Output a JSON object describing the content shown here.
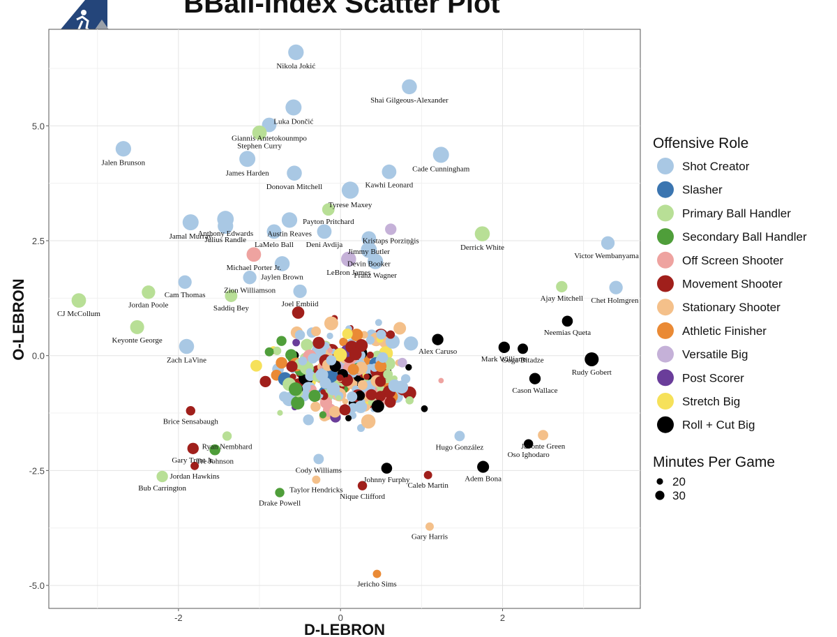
{
  "chart_data": {
    "type": "scatter",
    "title": "BBall-Index Scatter Plot",
    "xlabel": "D-LEBRON",
    "ylabel": "O-LEBRON",
    "xlim": [
      -3.6,
      3.7
    ],
    "ylim": [
      -5.5,
      7.1
    ],
    "xticks": [
      -2,
      0,
      2
    ],
    "yticks": [
      -5.0,
      -2.5,
      0.0,
      2.5,
      5.0
    ],
    "ytick_labels": [
      "-5.0",
      "-2.5",
      "0.0",
      "2.5",
      "5.0"
    ],
    "xtick_labels": [
      "-2",
      "0",
      "2"
    ],
    "grid": true,
    "legend_role_title": "Offensive Role",
    "legend_size_title": "Minutes Per Game",
    "legend_sizes": [
      {
        "label": "20",
        "minutes": 20
      },
      {
        "label": "30",
        "minutes": 30
      }
    ],
    "roles": [
      {
        "name": "Shot Creator",
        "color": "#a9c8e4"
      },
      {
        "name": "Slasher",
        "color": "#3b75b0"
      },
      {
        "name": "Primary Ball Handler",
        "color": "#b8df96"
      },
      {
        "name": "Secondary Ball Handler",
        "color": "#4f9e3a"
      },
      {
        "name": "Off Screen Shooter",
        "color": "#eea3a0"
      },
      {
        "name": "Movement Shooter",
        "color": "#a01f1b"
      },
      {
        "name": "Stationary Shooter",
        "color": "#f4c08a"
      },
      {
        "name": "Athletic Finisher",
        "color": "#ea8a35"
      },
      {
        "name": "Versatile Big",
        "color": "#c5b1d8"
      },
      {
        "name": "Post Scorer",
        "color": "#6a3d9a"
      },
      {
        "name": "Stretch Big",
        "color": "#f6e15a"
      },
      {
        "name": "Roll + Cut Big",
        "color": "#000000"
      }
    ],
    "labeled_points": [
      {
        "name": "Nikola Jokić",
        "x": -0.55,
        "y": 6.6,
        "role": 0,
        "min": 34
      },
      {
        "name": "Shai Gilgeous-Alexander",
        "x": 0.85,
        "y": 5.85,
        "role": 0,
        "min": 33
      },
      {
        "name": "Luka Dončić",
        "x": -0.58,
        "y": 5.4,
        "role": 0,
        "min": 35
      },
      {
        "name": "Giannis Antetokounmpo",
        "x": -0.88,
        "y": 5.02,
        "role": 0,
        "min": 32
      },
      {
        "name": "Stephen Curry",
        "x": -1.0,
        "y": 4.85,
        "role": 2,
        "min": 32
      },
      {
        "name": "Jalen Brunson",
        "x": -2.68,
        "y": 4.5,
        "role": 0,
        "min": 34
      },
      {
        "name": "James Harden",
        "x": -1.15,
        "y": 4.28,
        "role": 0,
        "min": 35
      },
      {
        "name": "Cade Cunningham",
        "x": 1.24,
        "y": 4.37,
        "role": 0,
        "min": 35
      },
      {
        "name": "Kawhi Leonard",
        "x": 0.6,
        "y": 4.0,
        "role": 0,
        "min": 32
      },
      {
        "name": "Donovan Mitchell",
        "x": -0.57,
        "y": 3.97,
        "role": 0,
        "min": 33
      },
      {
        "name": "Tyrese Maxey",
        "x": 0.12,
        "y": 3.6,
        "role": 0,
        "min": 37
      },
      {
        "name": "Anthony Edwards",
        "x": -1.42,
        "y": 2.97,
        "role": 0,
        "min": 36
      },
      {
        "name": "Payton Pritchard",
        "x": -0.15,
        "y": 3.18,
        "role": 2,
        "min": 28
      },
      {
        "name": "Jamal Murray",
        "x": -1.85,
        "y": 2.9,
        "role": 0,
        "min": 35
      },
      {
        "name": "Austin Reaves",
        "x": -0.63,
        "y": 2.95,
        "role": 0,
        "min": 34
      },
      {
        "name": "Deni Avdija",
        "x": -0.2,
        "y": 2.7,
        "role": 0,
        "min": 32
      },
      {
        "name": "Kristaps Porziņģis",
        "x": 0.62,
        "y": 2.75,
        "role": 8,
        "min": 26
      },
      {
        "name": "Julius Randle",
        "x": -1.42,
        "y": 2.82,
        "role": 0,
        "min": 34
      },
      {
        "name": "LaMelo Ball",
        "x": -0.82,
        "y": 2.7,
        "role": 0,
        "min": 32
      },
      {
        "name": "Jimmy Butler",
        "x": 0.35,
        "y": 2.55,
        "role": 0,
        "min": 32
      },
      {
        "name": "Derrick White",
        "x": 1.75,
        "y": 2.65,
        "role": 2,
        "min": 33
      },
      {
        "name": "Victor Wembanyama",
        "x": 3.3,
        "y": 2.45,
        "role": 0,
        "min": 30
      },
      {
        "name": "Devin Booker",
        "x": 0.35,
        "y": 2.3,
        "role": 0,
        "min": 35
      },
      {
        "name": "Michael Porter Jr.",
        "x": -1.07,
        "y": 2.2,
        "role": 4,
        "min": 32
      },
      {
        "name": "LeBron James",
        "x": 0.1,
        "y": 2.1,
        "role": 8,
        "min": 33
      },
      {
        "name": "Zion Williamson",
        "x": -1.12,
        "y": 1.7,
        "role": 0,
        "min": 30
      },
      {
        "name": "Jaylen Brown",
        "x": -0.72,
        "y": 2.0,
        "role": 0,
        "min": 33
      },
      {
        "name": "Franz Wagner",
        "x": 0.43,
        "y": 2.05,
        "role": 0,
        "min": 34
      },
      {
        "name": "Cam Thomas",
        "x": -1.92,
        "y": 1.6,
        "role": 0,
        "min": 30
      },
      {
        "name": "Ajay Mitchell",
        "x": 2.73,
        "y": 1.5,
        "role": 2,
        "min": 26
      },
      {
        "name": "Joel Embiid",
        "x": -0.5,
        "y": 1.4,
        "role": 0,
        "min": 30
      },
      {
        "name": "Saddiq Bey",
        "x": -1.35,
        "y": 1.3,
        "role": 2,
        "min": 28
      },
      {
        "name": "Chet Holmgren",
        "x": 3.4,
        "y": 1.48,
        "role": 0,
        "min": 30
      },
      {
        "name": "CJ McCollum",
        "x": -3.23,
        "y": 1.2,
        "role": 2,
        "min": 32
      },
      {
        "name": "Jordan Poole",
        "x": -2.37,
        "y": 1.38,
        "role": 2,
        "min": 30
      },
      {
        "name": "Keyonte George",
        "x": -2.51,
        "y": 0.62,
        "role": 2,
        "min": 31
      },
      {
        "name": "Neemias Queta",
        "x": 2.8,
        "y": 0.75,
        "role": 11,
        "min": 25
      },
      {
        "name": "Alex Caruso",
        "x": 1.2,
        "y": 0.35,
        "role": 11,
        "min": 26
      },
      {
        "name": "Goga Bitadze",
        "x": 2.25,
        "y": 0.15,
        "role": 11,
        "min": 24
      },
      {
        "name": "Zach LaVine",
        "x": -1.9,
        "y": 0.2,
        "role": 0,
        "min": 33
      },
      {
        "name": "Mark Williams",
        "x": 2.02,
        "y": 0.18,
        "role": 11,
        "min": 26
      },
      {
        "name": "Rudy Gobert",
        "x": 3.1,
        "y": -0.08,
        "role": 11,
        "min": 31
      },
      {
        "name": "Cason Wallace",
        "x": 2.4,
        "y": -0.5,
        "role": 11,
        "min": 26
      },
      {
        "name": "Brice Sensabaugh",
        "x": -1.85,
        "y": -1.2,
        "role": 5,
        "min": 22
      },
      {
        "name": "Ryan Nembhard",
        "x": -1.4,
        "y": -1.75,
        "role": 2,
        "min": 22
      },
      {
        "name": "Javonte Green",
        "x": 2.5,
        "y": -1.73,
        "role": 6,
        "min": 24
      },
      {
        "name": "Hugo González",
        "x": 1.47,
        "y": -1.75,
        "role": 0,
        "min": 24
      },
      {
        "name": "Gary Trent Jr.",
        "x": -1.82,
        "y": -2.02,
        "role": 5,
        "min": 26
      },
      {
        "name": "Tre Johnson",
        "x": -1.55,
        "y": -2.05,
        "role": 3,
        "min": 25
      },
      {
        "name": "Oso Ighodaro",
        "x": 2.32,
        "y": -1.92,
        "role": 11,
        "min": 22
      },
      {
        "name": "Jordan Hawkins",
        "x": -1.8,
        "y": -2.4,
        "role": 5,
        "min": 20
      },
      {
        "name": "Cody Williams",
        "x": -0.27,
        "y": -2.25,
        "role": 0,
        "min": 24
      },
      {
        "name": "Johnny Furphy",
        "x": 0.57,
        "y": -2.45,
        "role": 11,
        "min": 25
      },
      {
        "name": "Adem Bona",
        "x": 1.76,
        "y": -2.42,
        "role": 11,
        "min": 27
      },
      {
        "name": "Bub Carrington",
        "x": -2.2,
        "y": -2.63,
        "role": 2,
        "min": 26
      },
      {
        "name": "Taylor Hendricks",
        "x": -0.3,
        "y": -2.7,
        "role": 6,
        "min": 20
      },
      {
        "name": "Caleb Martin",
        "x": 1.08,
        "y": -2.6,
        "role": 5,
        "min": 20
      },
      {
        "name": "Nique Clifford",
        "x": 0.27,
        "y": -2.83,
        "role": 5,
        "min": 22
      },
      {
        "name": "Drake Powell",
        "x": -0.75,
        "y": -2.98,
        "role": 3,
        "min": 22
      },
      {
        "name": "Gary Harris",
        "x": 1.1,
        "y": -3.72,
        "role": 6,
        "min": 20
      },
      {
        "name": "Jericho Sims",
        "x": 0.45,
        "y": -4.75,
        "role": 7,
        "min": 20
      }
    ]
  }
}
